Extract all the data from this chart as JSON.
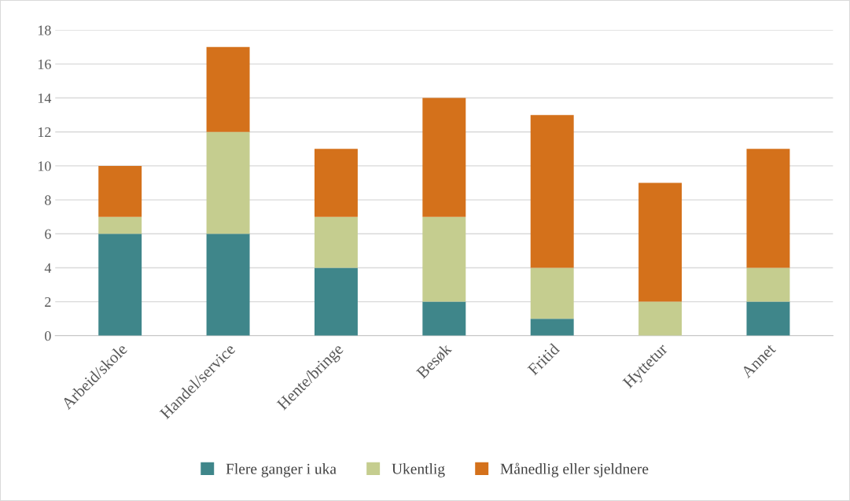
{
  "chart_data": {
    "type": "bar",
    "stacked": true,
    "categories": [
      "Arbeid/skole",
      "Handel/service",
      "Hente/bringe",
      "Besøk",
      "Fritid",
      "Hyttetur",
      "Annet"
    ],
    "series": [
      {
        "name": "Flere ganger i uka",
        "color": "#3f868a",
        "values": [
          6,
          6,
          4,
          2,
          1,
          0,
          2
        ]
      },
      {
        "name": "Ukentlig",
        "color": "#c5cd8f",
        "values": [
          1,
          6,
          3,
          5,
          3,
          2,
          2
        ]
      },
      {
        "name": "Månedlig eller sjeldnere",
        "color": "#d4711b",
        "values": [
          3,
          5,
          4,
          7,
          9,
          7,
          7
        ]
      }
    ],
    "ylim": [
      0,
      18
    ],
    "yticks": [
      0,
      2,
      4,
      6,
      8,
      10,
      12,
      14,
      16,
      18
    ],
    "grid": "y",
    "legend": "bottom"
  }
}
